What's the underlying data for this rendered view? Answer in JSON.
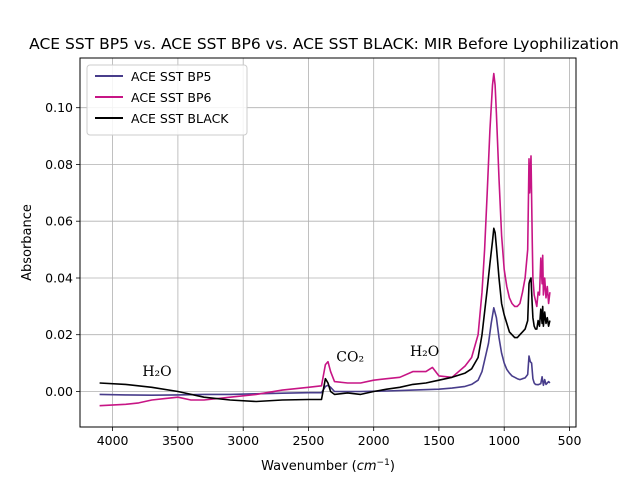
{
  "chart_data": {
    "type": "line",
    "title": "ACE SST BP5 vs. ACE SST BP6 vs. ACE SST BLACK: MIR Before Lyophilization",
    "xlabel_main": "Wavenumber (",
    "xlabel_unit": "cm",
    "xlabel_exp": "−1",
    "xlabel_close": ")",
    "ylabel": "Absorbance",
    "xlim": [
      4250,
      450
    ],
    "ylim": [
      -0.0125,
      0.1175
    ],
    "x_reversed": true,
    "grid": true,
    "legend_position": "upper-left",
    "xticks": [
      4000,
      3500,
      3000,
      2500,
      2000,
      1500,
      1000,
      500
    ],
    "xtick_labels": [
      "4000",
      "3500",
      "3000",
      "2500",
      "2000",
      "1500",
      "1000",
      "500"
    ],
    "yticks": [
      0.0,
      0.02,
      0.04,
      0.06,
      0.08,
      0.1
    ],
    "ytick_labels": [
      "0.00",
      "0.02",
      "0.04",
      "0.06",
      "0.08",
      "0.10"
    ],
    "annotations": [
      {
        "text": "H₂O",
        "x": 3660,
        "y": 0.0055
      },
      {
        "text": "CO₂",
        "x": 2180,
        "y": 0.0105
      },
      {
        "text": "H₂O",
        "x": 1610,
        "y": 0.0125
      }
    ],
    "series": [
      {
        "name": "ACE SST BP5",
        "color": "#483d8b",
        "x": [
          4100,
          3900,
          3700,
          3500,
          3300,
          3100,
          2900,
          2700,
          2500,
          2400,
          2370,
          2350,
          2330,
          2300,
          2100,
          1900,
          1700,
          1500,
          1400,
          1300,
          1250,
          1200,
          1170,
          1150,
          1120,
          1100,
          1080,
          1060,
          1040,
          1020,
          1000,
          980,
          960,
          940,
          920,
          900,
          880,
          860,
          840,
          820,
          810,
          800,
          790,
          780,
          770,
          760,
          740,
          720,
          710,
          700,
          690,
          680,
          660,
          650
        ],
        "y": [
          -0.001,
          -0.0012,
          -0.0013,
          -0.0012,
          -0.001,
          -0.001,
          -0.0008,
          -0.0006,
          -0.0004,
          -0.0004,
          0.0018,
          0.0022,
          0.0015,
          0.0,
          0.0,
          0.0002,
          0.0005,
          0.0008,
          0.0012,
          0.0018,
          0.0025,
          0.004,
          0.007,
          0.011,
          0.017,
          0.024,
          0.0295,
          0.026,
          0.019,
          0.0135,
          0.01,
          0.0078,
          0.0065,
          0.0055,
          0.005,
          0.0045,
          0.0042,
          0.0045,
          0.0048,
          0.006,
          0.0125,
          0.0105,
          0.01,
          0.0045,
          0.003,
          0.0025,
          0.0024,
          0.0028,
          0.0052,
          0.0022,
          0.0042,
          0.0025,
          0.0035,
          0.003
        ]
      },
      {
        "name": "ACE SST BP6",
        "color": "#c71585",
        "x": [
          4100,
          3900,
          3800,
          3700,
          3600,
          3500,
          3400,
          3300,
          3100,
          2900,
          2700,
          2500,
          2400,
          2370,
          2350,
          2330,
          2300,
          2200,
          2100,
          2000,
          1900,
          1800,
          1700,
          1600,
          1550,
          1500,
          1400,
          1300,
          1250,
          1200,
          1170,
          1150,
          1130,
          1110,
          1090,
          1080,
          1070,
          1060,
          1040,
          1020,
          1000,
          980,
          960,
          940,
          920,
          900,
          880,
          860,
          840,
          820,
          810,
          805,
          795,
          785,
          780,
          770,
          760,
          750,
          740,
          730,
          720,
          710,
          705,
          700,
          690,
          680,
          670,
          660,
          650
        ],
        "y": [
          -0.005,
          -0.0045,
          -0.004,
          -0.003,
          -0.0025,
          -0.002,
          -0.003,
          -0.003,
          -0.002,
          -0.001,
          0.0005,
          0.0015,
          0.002,
          0.0095,
          0.0105,
          0.007,
          0.0035,
          0.003,
          0.003,
          0.004,
          0.0045,
          0.005,
          0.007,
          0.007,
          0.0085,
          0.0055,
          0.005,
          0.009,
          0.012,
          0.02,
          0.035,
          0.05,
          0.07,
          0.092,
          0.108,
          0.112,
          0.108,
          0.098,
          0.075,
          0.055,
          0.043,
          0.037,
          0.033,
          0.031,
          0.03,
          0.03,
          0.031,
          0.035,
          0.04,
          0.05,
          0.082,
          0.07,
          0.083,
          0.052,
          0.04,
          0.034,
          0.032,
          0.03,
          0.035,
          0.034,
          0.047,
          0.038,
          0.048,
          0.034,
          0.04,
          0.033,
          0.037,
          0.031,
          0.035
        ]
      },
      {
        "name": "ACE SST BLACK",
        "color": "#000000",
        "x": [
          4100,
          3900,
          3700,
          3500,
          3300,
          3100,
          2900,
          2700,
          2500,
          2400,
          2370,
          2350,
          2330,
          2300,
          2200,
          2100,
          2000,
          1900,
          1800,
          1700,
          1600,
          1500,
          1400,
          1300,
          1250,
          1200,
          1170,
          1150,
          1130,
          1110,
          1090,
          1080,
          1070,
          1060,
          1040,
          1020,
          1000,
          980,
          960,
          940,
          920,
          900,
          880,
          860,
          840,
          820,
          810,
          805,
          795,
          785,
          780,
          770,
          760,
          750,
          740,
          730,
          720,
          710,
          705,
          700,
          690,
          680,
          670,
          660,
          650
        ],
        "y": [
          0.003,
          0.0025,
          0.0015,
          0.0,
          -0.002,
          -0.003,
          -0.0035,
          -0.003,
          -0.0028,
          -0.0028,
          0.0045,
          0.003,
          0.0,
          -0.001,
          -0.0005,
          -0.001,
          0.0,
          0.0008,
          0.0015,
          0.0025,
          0.003,
          0.004,
          0.005,
          0.0065,
          0.008,
          0.012,
          0.02,
          0.028,
          0.036,
          0.045,
          0.053,
          0.0575,
          0.056,
          0.051,
          0.04,
          0.031,
          0.027,
          0.024,
          0.021,
          0.02,
          0.019,
          0.019,
          0.02,
          0.021,
          0.022,
          0.025,
          0.038,
          0.039,
          0.04,
          0.03,
          0.026,
          0.023,
          0.022,
          0.022,
          0.025,
          0.023,
          0.029,
          0.024,
          0.03,
          0.023,
          0.028,
          0.024,
          0.026,
          0.023,
          0.025
        ]
      }
    ]
  }
}
